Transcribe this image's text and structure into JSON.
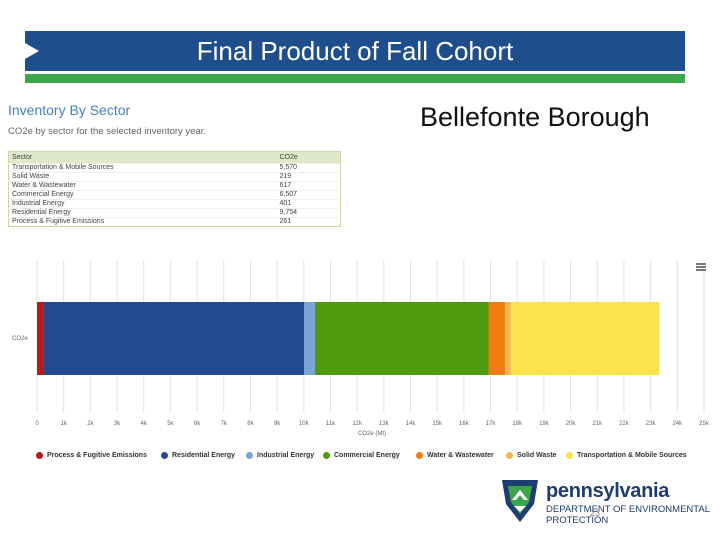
{
  "slide": {
    "title": "Final Product of Fall Cohort",
    "place": "Bellefonte Borough",
    "page_number": "23"
  },
  "inventory": {
    "heading": "Inventory By Sector",
    "subheading": "CO2e by sector for the selected inventory year.",
    "columns": [
      "Sector",
      "CO2e"
    ],
    "rows": [
      [
        "Transportation & Mobile Sources",
        "5,570"
      ],
      [
        "Solid Waste",
        "219"
      ],
      [
        "Water & Wastewater",
        "617"
      ],
      [
        "Commercial Energy",
        "6,507"
      ],
      [
        "Industrial Energy",
        "401"
      ],
      [
        "Residential Energy",
        "9,754"
      ],
      [
        "Process & Fugitive Emissions",
        "261"
      ]
    ]
  },
  "chart_data": {
    "type": "bar",
    "orientation": "horizontal-stacked",
    "categories": [
      "CO2e"
    ],
    "series": [
      {
        "name": "Process & Fugitive Emissions",
        "values": [
          261
        ],
        "color": "#b71c1c"
      },
      {
        "name": "Residential Energy",
        "values": [
          9754
        ],
        "color": "#234a8f"
      },
      {
        "name": "Industrial Energy",
        "values": [
          401
        ],
        "color": "#7aa3d6"
      },
      {
        "name": "Commercial Energy",
        "values": [
          6507
        ],
        "color": "#4e9a0c"
      },
      {
        "name": "Water & Wastewater",
        "values": [
          617
        ],
        "color": "#f07d0d"
      },
      {
        "name": "Solid Waste",
        "values": [
          219
        ],
        "color": "#f5b54a"
      },
      {
        "name": "Transportation & Mobile Sources",
        "values": [
          5570
        ],
        "color": "#fbe24f"
      }
    ],
    "xlabel": "CO2e (Mt)",
    "xlim": [
      0,
      25000
    ],
    "xticks": [
      0,
      1000,
      2000,
      3000,
      4000,
      5000,
      6000,
      7000,
      8000,
      9000,
      10000,
      11000,
      12000,
      13000,
      14000,
      15000,
      16000,
      17000,
      18000,
      19000,
      20000,
      21000,
      22000,
      23000,
      24000,
      25000
    ],
    "xtick_labels": [
      "0",
      "1k",
      "2k",
      "3k",
      "4k",
      "5k",
      "6k",
      "7k",
      "8k",
      "9k",
      "10k",
      "11k",
      "12k",
      "13k",
      "14k",
      "15k",
      "16k",
      "17k",
      "18k",
      "19k",
      "20k",
      "21k",
      "22k",
      "23k",
      "24k",
      "25k"
    ],
    "grid": true,
    "legend": "bottom"
  },
  "logo": {
    "word": "pennsylvania",
    "dept_line1": "DEPARTMENT OF ENVIRONMENTAL",
    "dept_line2": "PROTECTION"
  }
}
